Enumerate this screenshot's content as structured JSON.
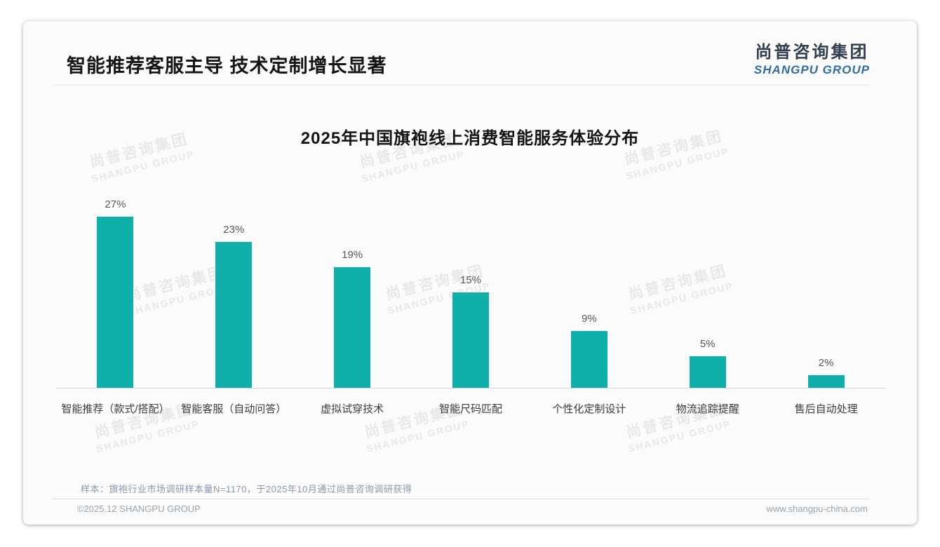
{
  "page": {
    "main_title": "智能推荐客服主导 技术定制增长显著",
    "logo": {
      "cn": "尚普咨询集团",
      "en": "SHANGPU GROUP"
    },
    "watermark": {
      "line1": "尚普咨询集团",
      "line2": "SHANGPU GROUP"
    },
    "sample_note": "样本：旗袍行业市场调研样本量N=1170，于2025年10月通过尚普咨询调研获得",
    "footer_left": "©2025.12 SHANGPU GROUP",
    "footer_right": "www.shangpu-china.com"
  },
  "colors": {
    "bar": "#0fb0a9",
    "logo_cn": "#333f50",
    "logo_en": "#2e6da6",
    "note": "#8d97ab",
    "footer": "#9aa2aa"
  },
  "chart_data": {
    "type": "bar",
    "title": "2025年中国旗袍线上消费智能服务体验分布",
    "categories": [
      "智能推荐（款式/搭配）",
      "智能客服（自动问答）",
      "虚拟试穿技术",
      "智能尺码匹配",
      "个性化定制设计",
      "物流追踪提醒",
      "售后自动处理"
    ],
    "values": [
      27,
      23,
      19,
      15,
      9,
      5,
      2
    ],
    "data_labels": [
      "27%",
      "23%",
      "19%",
      "15%",
      "9%",
      "5%",
      "2%"
    ],
    "unit": "%",
    "ylim": [
      0,
      30
    ],
    "xlabel": "",
    "ylabel": "",
    "grid": false,
    "legend": "none",
    "bar_color": "#0fb0a9"
  }
}
